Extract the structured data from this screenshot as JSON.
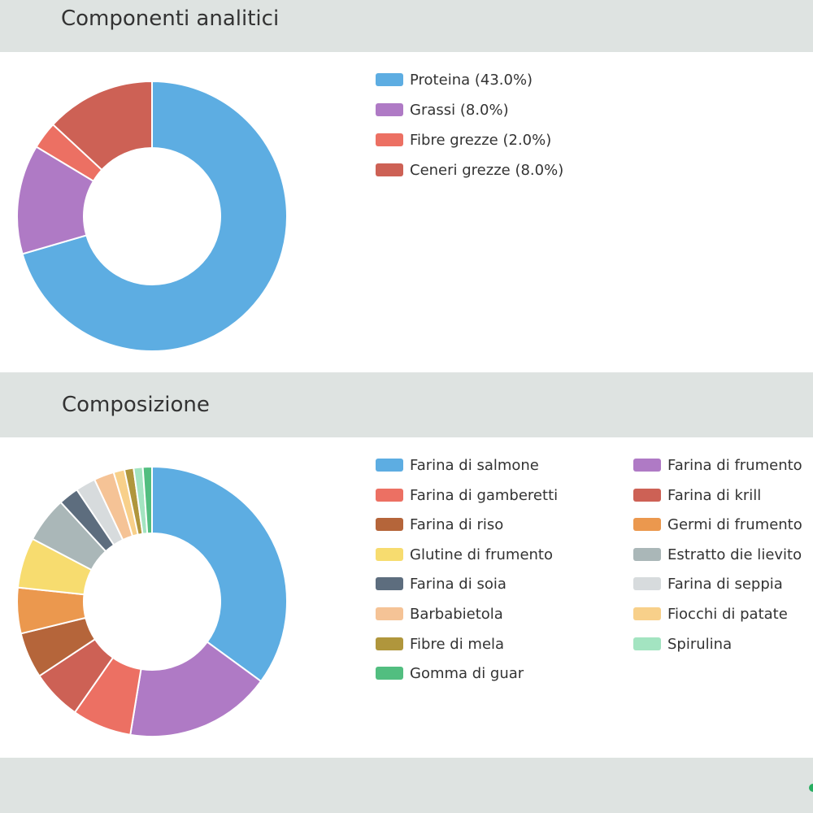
{
  "sections": {
    "analytic_title": "Componenti analitici",
    "composition_title": "Composizione"
  },
  "chart_data": [
    {
      "type": "pie",
      "subtype": "donut",
      "title": "Componenti analitici",
      "legend": "right",
      "slices": [
        {
          "label": "Proteina",
          "value": 43.0,
          "legend_text": "Proteina (43.0%)",
          "color": "#5dade2"
        },
        {
          "label": "Grassi",
          "value": 8.0,
          "legend_text": "Grassi (8.0%)",
          "color": "#af7ac5"
        },
        {
          "label": "Fibre grezze",
          "value": 2.0,
          "legend_text": "Fibre grezze (2.0%)",
          "color": "#ec7063"
        },
        {
          "label": "Ceneri grezze",
          "value": 8.0,
          "legend_text": "Ceneri grezze (8.0%)",
          "color": "#cd6155"
        }
      ]
    },
    {
      "type": "pie",
      "subtype": "donut",
      "title": "Composizione",
      "legend": "right",
      "slices": [
        {
          "label": "Farina di salmone",
          "value": 32,
          "color": "#5dade2"
        },
        {
          "label": "Farina di frumento",
          "value": 16,
          "color": "#af7ac5"
        },
        {
          "label": "Farina di gamberetti",
          "value": 6.5,
          "color": "#ec7063"
        },
        {
          "label": "Farina di krill",
          "value": 5.5,
          "color": "#cd6155"
        },
        {
          "label": "Farina di riso",
          "value": 5,
          "color": "#b5653a"
        },
        {
          "label": "Germi di frumento",
          "value": 5,
          "color": "#eb984e"
        },
        {
          "label": "Glutine di frumento",
          "value": 5.5,
          "color": "#f7dc6f"
        },
        {
          "label": "Estratto die lievito",
          "value": 5,
          "color": "#aab7b8"
        },
        {
          "label": "Farina di soia",
          "value": 2.2,
          "color": "#5d6d7e"
        },
        {
          "label": "Farina di seppia",
          "value": 2.2,
          "color": "#d7dbdd"
        },
        {
          "label": "Barbabietola",
          "value": 2.2,
          "color": "#f5c396"
        },
        {
          "label": "Fiocchi di patate",
          "value": 1.2,
          "color": "#f8d08a"
        },
        {
          "label": "Fibre di mela",
          "value": 1.0,
          "color": "#b0963c"
        },
        {
          "label": "Spirulina",
          "value": 1.0,
          "color": "#a3e4c1"
        },
        {
          "label": "Gomma di guar",
          "value": 1.0,
          "color": "#52be80"
        }
      ]
    }
  ]
}
